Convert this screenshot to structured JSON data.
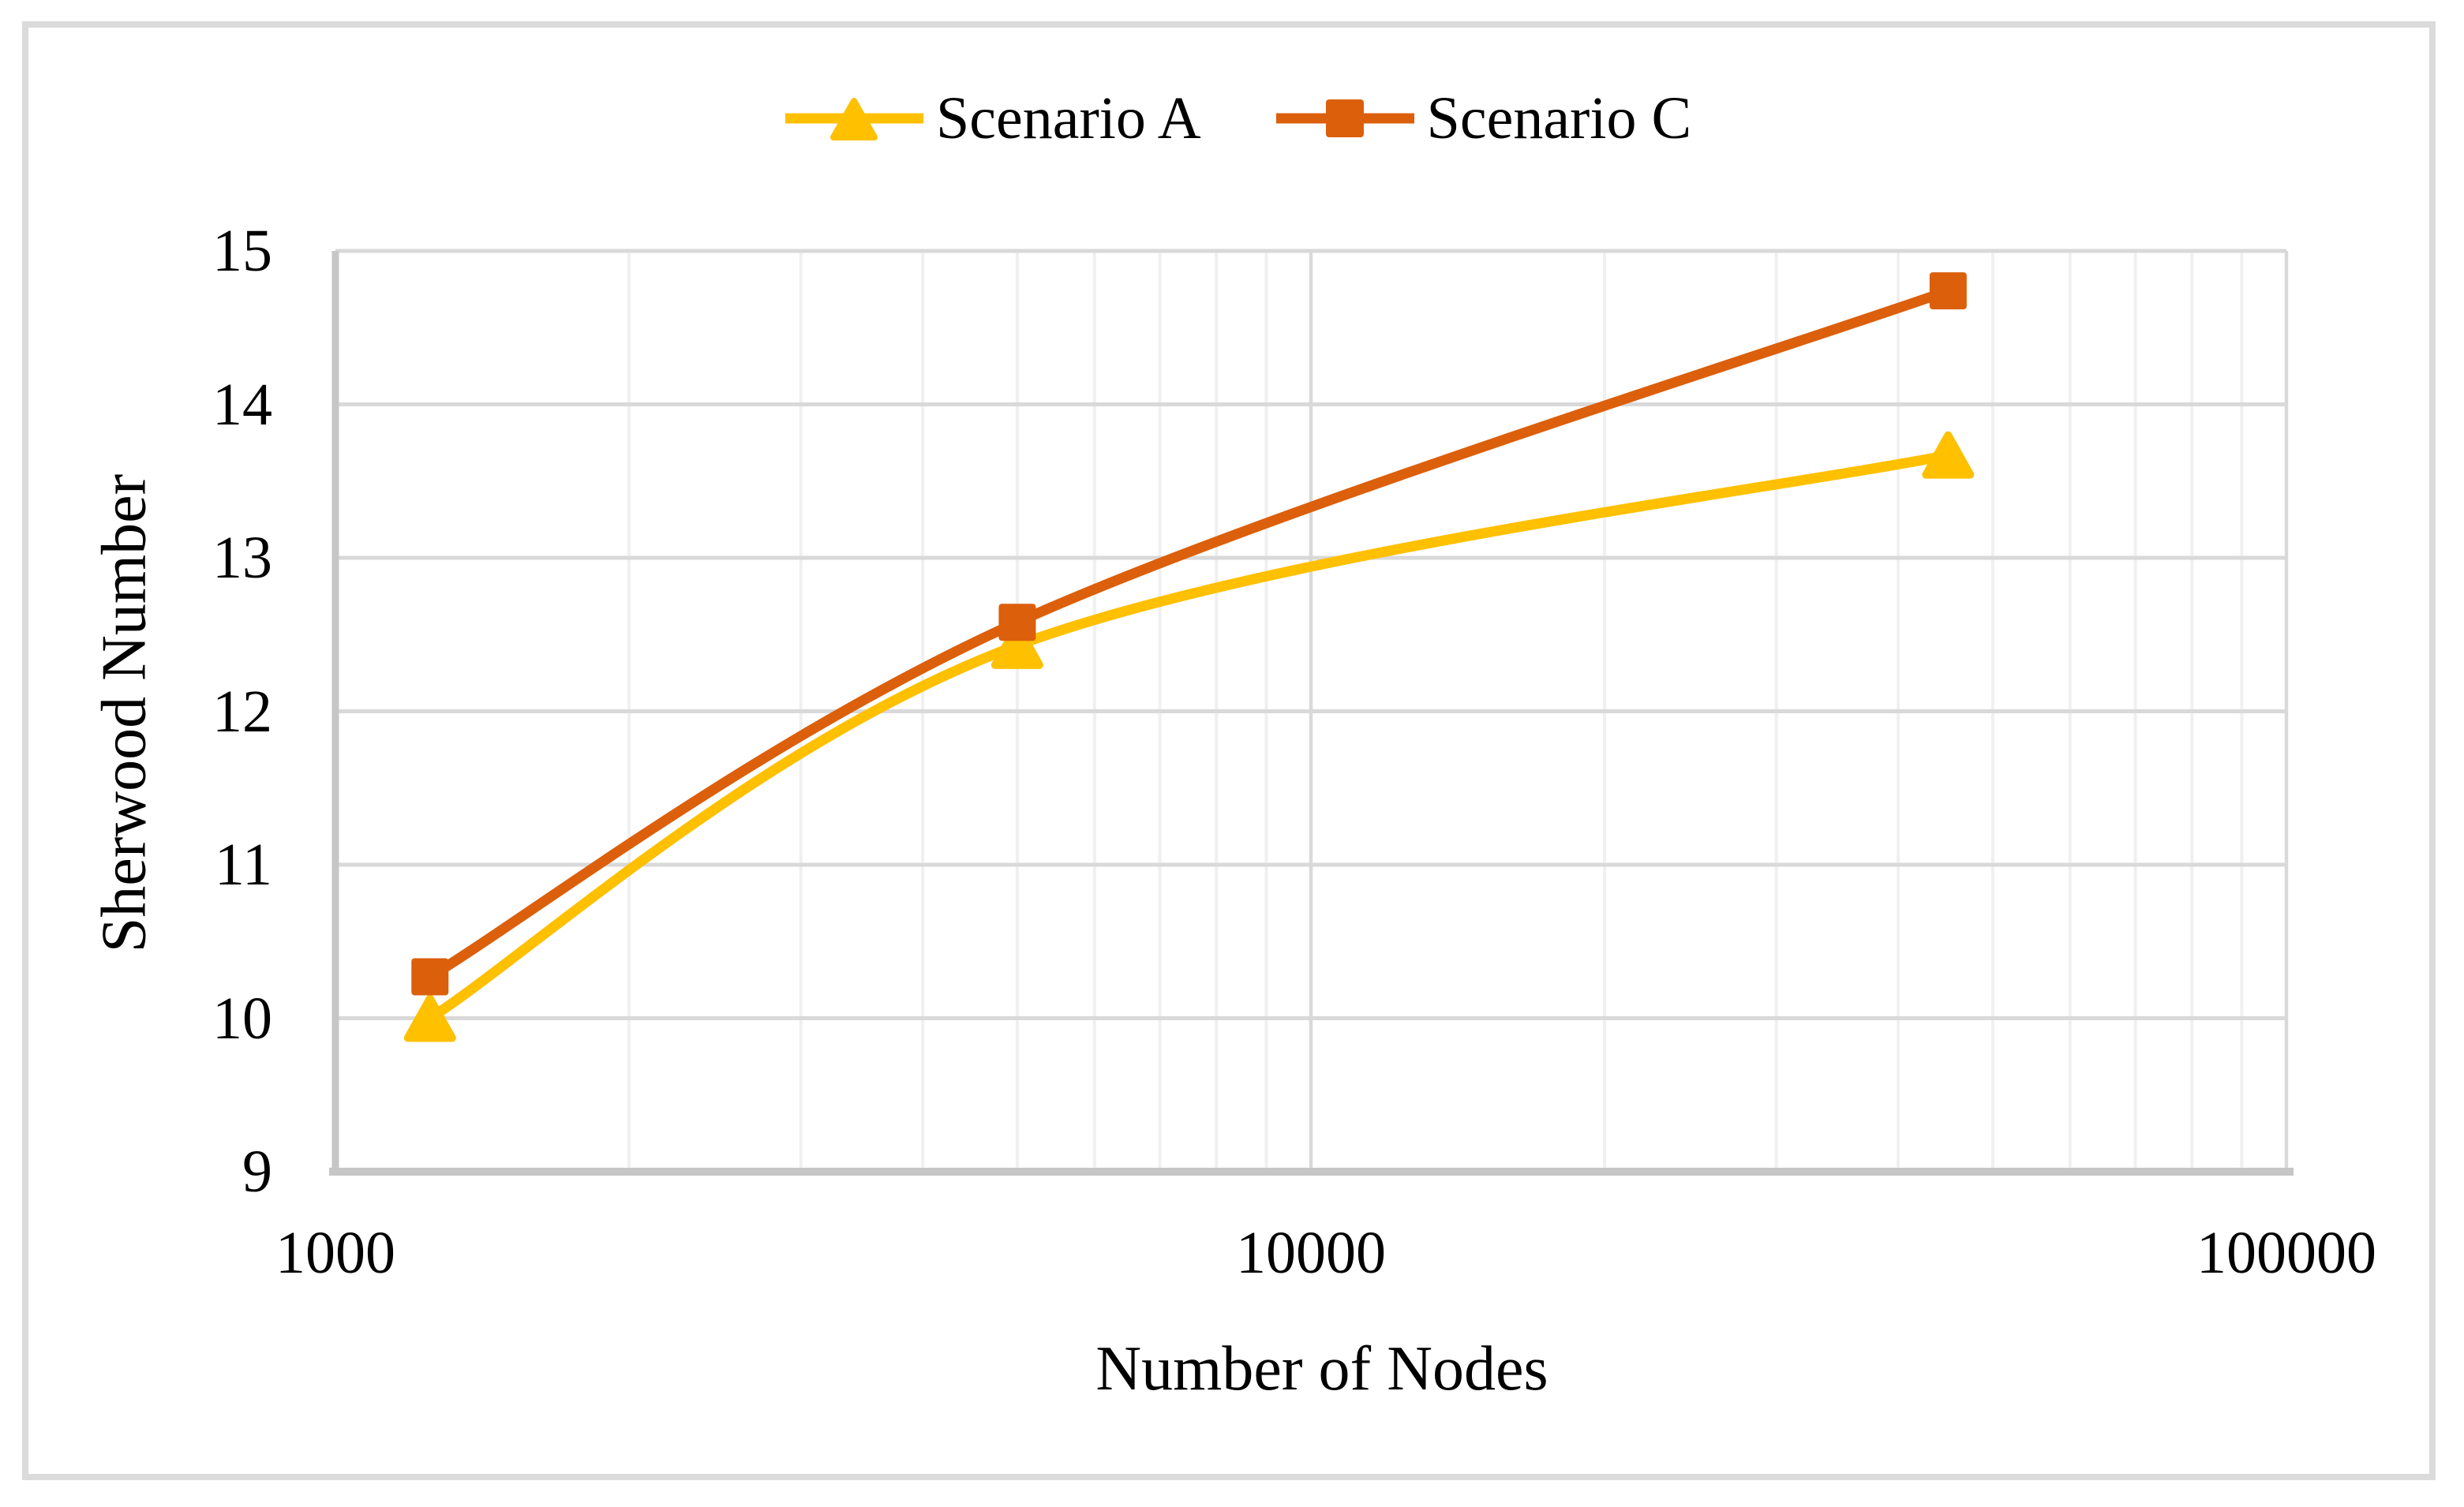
{
  "figure": {
    "background": "#FFFFFF",
    "border_color": "#DBDBDB",
    "text_color": "#000000"
  },
  "legend": {
    "position": "top-center",
    "entries": [
      "Scenario A",
      "Scenario C"
    ]
  },
  "chart_data": {
    "type": "line",
    "title": "",
    "xlabel": "Number of Nodes",
    "ylabel": "Sherwood Number",
    "x_scale": "log10",
    "xlim": [
      1000,
      100000
    ],
    "ylim": [
      9,
      15
    ],
    "x_tick_labels": [
      "1000",
      "10000",
      "100000"
    ],
    "x_tick_values": [
      1000,
      10000,
      100000
    ],
    "y_tick_values": [
      9,
      10,
      11,
      12,
      13,
      14,
      15
    ],
    "grid": {
      "horizontal_major": true,
      "vertical_major": true,
      "vertical_minor_log": true,
      "major_color": "#D9D9D9",
      "minor_color": "#F0F0F0",
      "axis_line_color": "#C6C6C6"
    },
    "x": [
      1250,
      5000,
      45000
    ],
    "series": [
      {
        "name": "Scenario A",
        "marker": "triangle",
        "color": "#FFC000",
        "smooth": true,
        "values": [
          10.0,
          12.43,
          13.67
        ]
      },
      {
        "name": "Scenario C",
        "marker": "square",
        "color": "#DC5F0B",
        "smooth": true,
        "values": [
          10.27,
          12.58,
          14.74
        ]
      }
    ]
  }
}
